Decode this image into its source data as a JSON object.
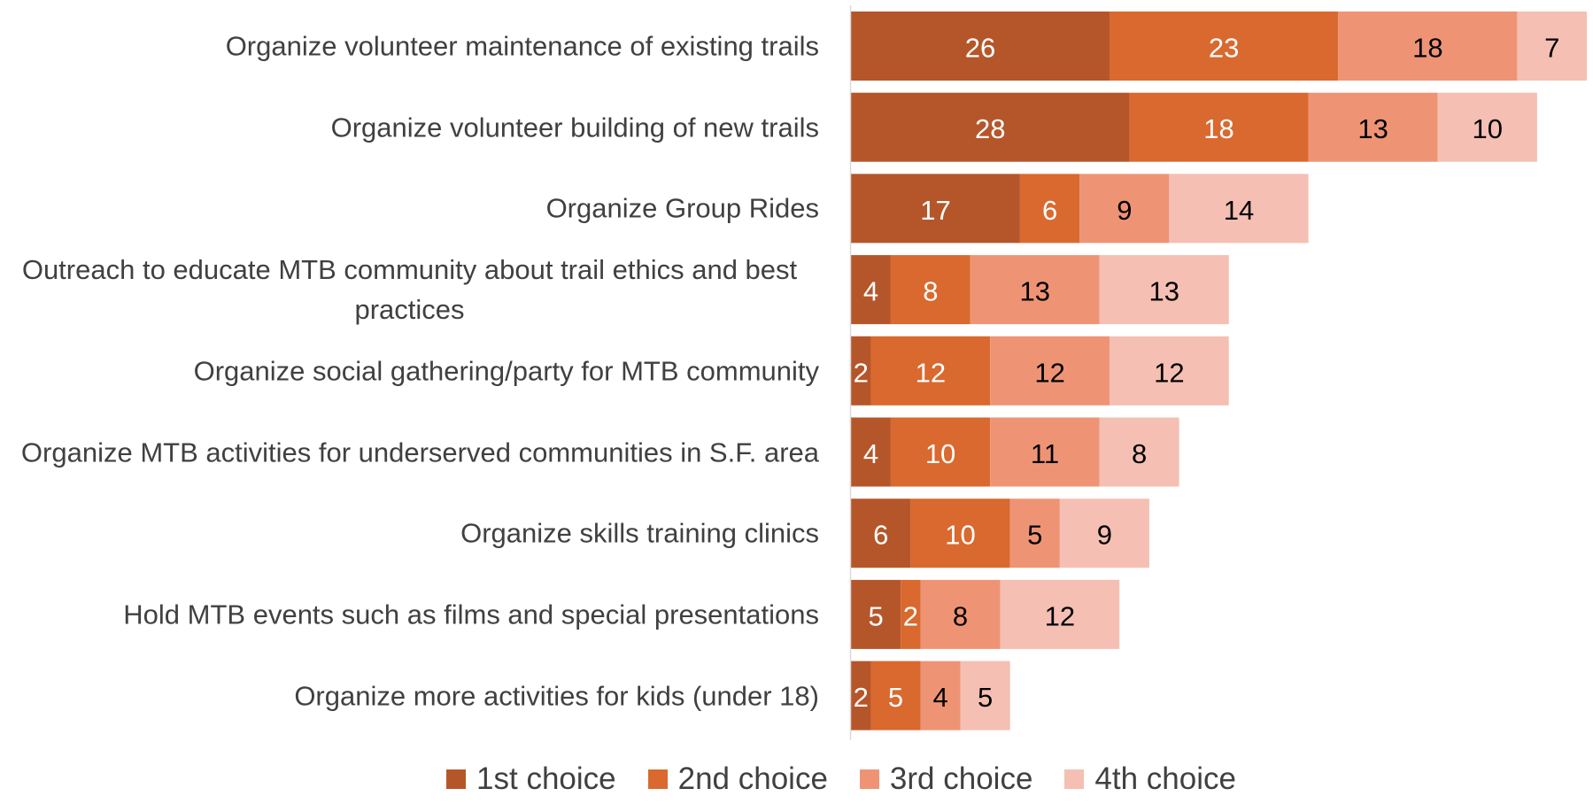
{
  "chart_data": {
    "type": "stacked_bar_horizontal",
    "categories": [
      "Organize volunteer maintenance of existing trails",
      "Organize volunteer building of new trails",
      "Organize Group Rides",
      "Outreach to educate MTB community about trail ethics and best practices",
      "Organize social gathering/party for MTB community",
      "Organize MTB activities for underserved communities in S.F. area",
      "Organize skills training clinics",
      "Hold MTB events such as films and special presentations",
      "Organize more activities for kids (under 18)"
    ],
    "series": [
      {
        "name": "1st choice",
        "color": "#b5562a",
        "values": [
          26,
          28,
          17,
          4,
          2,
          4,
          6,
          5,
          2
        ]
      },
      {
        "name": "2nd choice",
        "color": "#d9692f",
        "values": [
          23,
          18,
          6,
          8,
          12,
          10,
          10,
          2,
          5
        ]
      },
      {
        "name": "3rd choice",
        "color": "#ee9475",
        "values": [
          18,
          13,
          9,
          13,
          12,
          11,
          5,
          8,
          4
        ]
      },
      {
        "name": "4th choice",
        "color": "#f5bfb3",
        "values": [
          7,
          10,
          14,
          13,
          12,
          8,
          9,
          12,
          5
        ]
      }
    ],
    "legend": "bottom"
  }
}
